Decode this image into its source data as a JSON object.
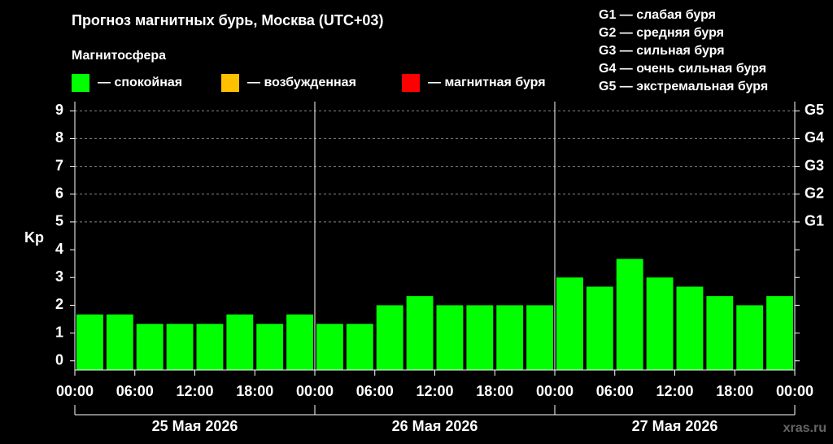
{
  "chart_data": {
    "type": "bar",
    "title": "Прогноз магнитных бурь, Москва (UTC+03)",
    "legend_title": "Магнитосфера",
    "legend": [
      {
        "name": "— спокойная",
        "color": "#00ff00"
      },
      {
        "name": "— возбужденная",
        "color": "#ffc000"
      },
      {
        "name": "— магнитная буря",
        "color": "#ff0000"
      }
    ],
    "storm_legend": [
      "G1 — слабая буря",
      "G2 — средняя буря",
      "G3 — сильная буря",
      "G4 — очень сильная буря",
      "G5 — экстремальная буря"
    ],
    "y_label": "Kp",
    "x": [
      0,
      3,
      6,
      9,
      12,
      15,
      18,
      21,
      24,
      27,
      30,
      33,
      36,
      39,
      42,
      45,
      48,
      51,
      54,
      57,
      60,
      63,
      66,
      69
    ],
    "series": [
      {
        "name": "Kp",
        "color": "#00ff00",
        "values": [
          1.67,
          1.67,
          1.33,
          1.33,
          1.33,
          1.67,
          1.33,
          1.67,
          1.33,
          1.33,
          2,
          2.33,
          2,
          2,
          2,
          2,
          3,
          2.67,
          3.67,
          3,
          2.67,
          2.33,
          2,
          2.33
        ]
      }
    ],
    "bar_width": 3,
    "xlim": [
      0,
      72
    ],
    "xticks": [
      {
        "value": 0,
        "label": "00:00"
      },
      {
        "value": 6,
        "label": "06:00"
      },
      {
        "value": 12,
        "label": "12:00"
      },
      {
        "value": 18,
        "label": "18:00"
      },
      {
        "value": 24,
        "label": "00:00"
      },
      {
        "value": 30,
        "label": "06:00"
      },
      {
        "value": 36,
        "label": "12:00"
      },
      {
        "value": 42,
        "label": "18:00"
      },
      {
        "value": 48,
        "label": "00:00"
      },
      {
        "value": 54,
        "label": "06:00"
      },
      {
        "value": 60,
        "label": "12:00"
      },
      {
        "value": 66,
        "label": "18:00"
      },
      {
        "value": 72,
        "label": "00:00"
      }
    ],
    "days": [
      "25 Мая 2026",
      "26 Мая 2026",
      "27 Мая 2026"
    ],
    "ylim": [
      -0.33,
      9.33
    ],
    "yticks": [
      0,
      1,
      2,
      3,
      4,
      5,
      6,
      7,
      8,
      9
    ],
    "y2lim": [
      -0.33,
      9.33
    ],
    "y2ticks": [
      {
        "value": 5,
        "label": "G1"
      },
      {
        "value": 6,
        "label": "G2"
      },
      {
        "value": 7,
        "label": "G3"
      },
      {
        "value": 8,
        "label": "G4"
      },
      {
        "value": 9,
        "label": "G5"
      }
    ],
    "grid": true,
    "watermark": "xras.ru"
  }
}
